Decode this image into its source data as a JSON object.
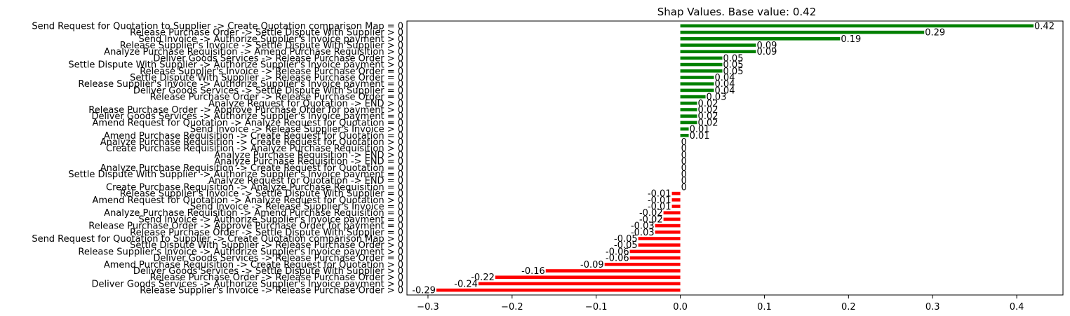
{
  "chart_data": {
    "type": "bar",
    "orientation": "horizontal",
    "title": "Shap Values. Base value: 0.42",
    "xlabel": "",
    "ylabel": "",
    "xlim": [
      -0.325,
      0.455
    ],
    "xticks": [
      -0.3,
      -0.2,
      -0.1,
      0.0,
      0.1,
      0.2,
      0.3,
      0.4
    ],
    "xtick_labels": [
      "−0.3",
      "−0.2",
      "−0.1",
      "0.0",
      "0.1",
      "0.2",
      "0.3",
      "0.4"
    ],
    "grid": false,
    "colors": {
      "positive": "#008000",
      "negative": "#ff0000",
      "zero": "#008000"
    },
    "categories": [
      "Send Request for Quotation to Supplier -> Create Quotation comparison Map = 0",
      "Release Purchase Order -> Settle Dispute With Supplier > 0",
      "Send Invoice -> Authorize Supplier's Invoice payment > 0",
      "Release Supplier's Invoice -> Settle Dispute With Supplier > 0",
      "Analyze Purchase Requisition -> Amend Purchase Requisition > 0",
      "Deliver Goods Services -> Release Purchase Order > 0",
      "Settle Dispute With Supplier -> Authorize Supplier's Invoice payment > 0",
      "Release Supplier's Invoice -> Release Purchase Order = 0",
      "Settle Dispute With Supplier -> Release Purchase Order = 0",
      "Release Supplier's Invoice -> Authorize Supplier's Invoice payment = 0",
      "Deliver Goods Services -> Settle Dispute With Supplier = 0",
      "Release Purchase Order -> Release Purchase Order = 0",
      "Analyze Request for Quotation -> END > 0",
      "Release Purchase Order -> Approve Purchase Order for payment > 0",
      "Deliver Goods Services -> Authorize Supplier's Invoice payment = 0",
      "Amend Request for Quotation -> Analyze Request for Quotation = 0",
      "Send Invoice -> Release Supplier's Invoice > 0",
      "Amend Purchase Requisition -> Create Request for Quotation = 0",
      "Analyze Purchase Requisition -> Create Request for Quotation > 0",
      "Create Purchase Requisition -> Analyze Purchase Requisition > 0",
      "Analyze Purchase Requisition -> END > 0",
      "Analyze Purchase Requisition -> END = 0",
      "Analyze Purchase Requisition -> Create Request for Quotation = 0",
      "Settle Dispute With Supplier -> Authorize Supplier's Invoice payment = 0",
      "Analyze Request for Quotation -> END = 0",
      "Create Purchase Requisition -> Analyze Purchase Requisition = 0",
      "Release Supplier's Invoice -> Settle Dispute With Supplier = 0",
      "Amend Request for Quotation -> Analyze Request for Quotation > 0",
      "Send Invoice -> Release Supplier's Invoice = 0",
      "Analyze Purchase Requisition -> Amend Purchase Requisition = 0",
      "Send Invoice -> Authorize Supplier's Invoice payment = 0",
      "Release Purchase Order -> Approve Purchase Order for payment = 0",
      "Release Purchase Order -> Settle Dispute With Supplier = 0",
      "Send Request for Quotation to Supplier -> Create Quotation comparison Map > 0",
      "Settle Dispute With Supplier -> Release Purchase Order > 0",
      "Release Supplier's Invoice -> Authorize Supplier's Invoice payment > 0",
      "Deliver Goods Services -> Release Purchase Order = 0",
      "Amend Purchase Requisition -> Create Request for Quotation > 0",
      "Deliver Goods Services -> Settle Dispute With Supplier > 0",
      "Release Purchase Order -> Release Purchase Order > 0",
      "Deliver Goods Services -> Authorize Supplier's Invoice payment > 0",
      "Release Supplier's Invoice -> Release Purchase Order > 0"
    ],
    "values": [
      0.42,
      0.29,
      0.19,
      0.09,
      0.09,
      0.05,
      0.05,
      0.05,
      0.04,
      0.04,
      0.04,
      0.03,
      0.02,
      0.02,
      0.02,
      0.02,
      0.01,
      0.01,
      0,
      0,
      0,
      0,
      0,
      0,
      0,
      0,
      -0.01,
      -0.01,
      -0.01,
      -0.02,
      -0.02,
      -0.03,
      -0.03,
      -0.05,
      -0.05,
      -0.06,
      -0.06,
      -0.09,
      -0.16,
      -0.22,
      -0.24,
      -0.29
    ],
    "value_labels": [
      "0.42",
      "0.29",
      "0.19",
      "0.09",
      "0.09",
      "0.05",
      "0.05",
      "0.05",
      "0.04",
      "0.04",
      "0.04",
      "0.03",
      "0.02",
      "0.02",
      "0.02",
      "0.02",
      "0.01",
      "0.01",
      "0",
      "0",
      "0",
      "0",
      "0",
      "0",
      "0",
      "0",
      "-0.01",
      "-0.01",
      "-0.01",
      "-0.02",
      "-0.02",
      "-0.03",
      "-0.03",
      "-0.05",
      "-0.05",
      "-0.06",
      "-0.06",
      "-0.09",
      "-0.16",
      "-0.22",
      "-0.24",
      "-0.29"
    ]
  }
}
